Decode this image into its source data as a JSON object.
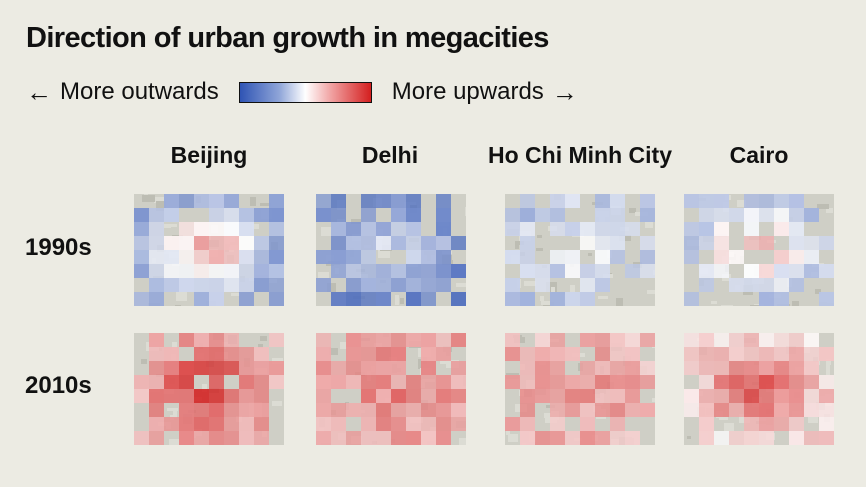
{
  "title": "Direction of urban growth in megacities",
  "legend": {
    "left_arrow": "←",
    "left_label": "More outwards",
    "right_label": "More upwards",
    "right_arrow": "→",
    "color_low": "#2f54b4",
    "color_mid": "#ffffff",
    "color_high": "#d41f1f"
  },
  "cities": [
    "Beijing",
    "Delhi",
    "Ho Chi Minh City",
    "Cairo"
  ],
  "periods": [
    "1990s",
    "2010s"
  ],
  "colors": {
    "background": "#ecebe3",
    "map_ground": "#cfcfc6"
  }
}
